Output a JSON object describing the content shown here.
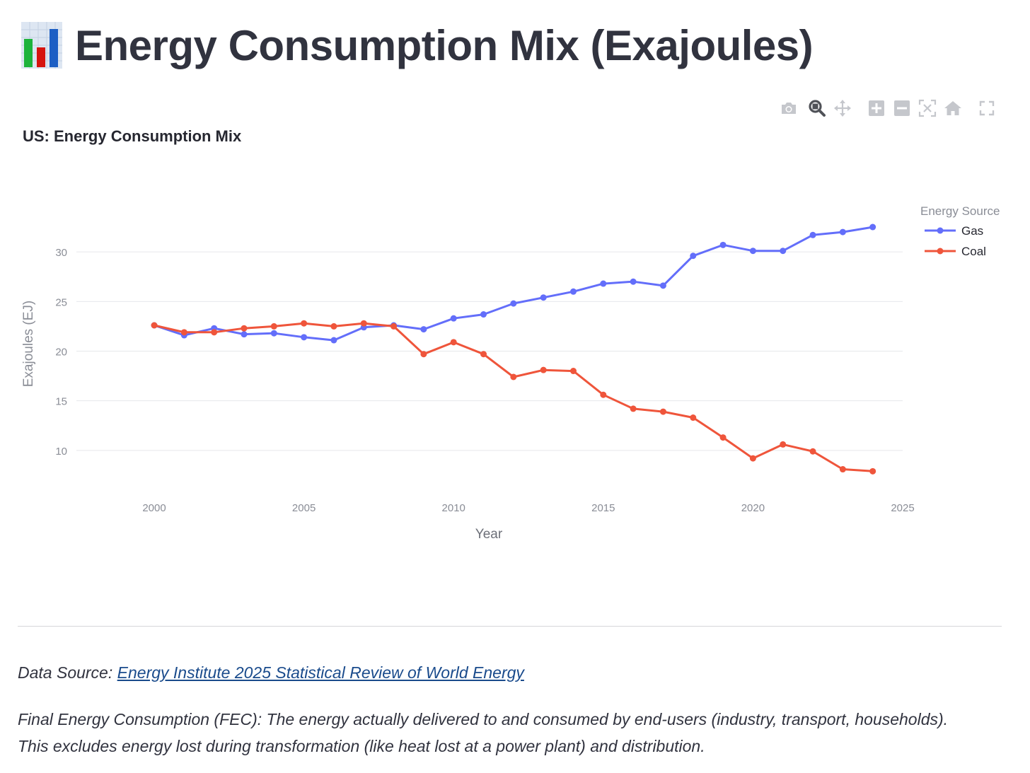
{
  "page": {
    "title": "Energy Consumption Mix (Exajoules)",
    "title_icon": "bar-chart-icon"
  },
  "modebar": {
    "icons": [
      "camera-icon",
      "zoom-icon",
      "pan-icon",
      "zoom-in-icon",
      "zoom-out-icon",
      "autoscale-icon",
      "reset-axes-icon",
      "fullscreen-icon"
    ]
  },
  "chart_data": {
    "type": "line",
    "title": "US: Energy Consumption Mix",
    "xlabel": "Year",
    "ylabel": "Exajoules (EJ)",
    "xlim": [
      1997.4,
      2025
    ],
    "ylim": [
      5.5,
      34
    ],
    "x_ticks": [
      2000,
      2005,
      2010,
      2015,
      2020,
      2025
    ],
    "y_ticks": [
      10,
      15,
      20,
      25,
      30
    ],
    "grid": true,
    "legend_title": "Energy Source",
    "legend_placement": "top-right",
    "x": [
      2000,
      2001,
      2002,
      2003,
      2004,
      2005,
      2006,
      2007,
      2008,
      2009,
      2010,
      2011,
      2012,
      2013,
      2014,
      2015,
      2016,
      2017,
      2018,
      2019,
      2020,
      2021,
      2022,
      2023,
      2024
    ],
    "series": [
      {
        "name": "Gas",
        "color": "#636efa",
        "values": [
          22.6,
          21.6,
          22.3,
          21.7,
          21.8,
          21.4,
          21.1,
          22.4,
          22.6,
          22.2,
          23.3,
          23.7,
          24.8,
          25.4,
          26.0,
          26.8,
          27.0,
          26.6,
          29.6,
          30.7,
          30.1,
          30.1,
          31.7,
          32.0,
          32.5
        ]
      },
      {
        "name": "Coal",
        "color": "#EF553B",
        "values": [
          22.6,
          21.9,
          21.9,
          22.3,
          22.5,
          22.8,
          22.5,
          22.8,
          22.5,
          19.7,
          20.9,
          19.7,
          17.4,
          18.1,
          18.0,
          15.6,
          14.2,
          13.9,
          13.3,
          11.3,
          9.2,
          10.6,
          9.9,
          8.1,
          7.9
        ]
      }
    ]
  },
  "footer": {
    "source_prefix": "Data Source: ",
    "source_link": "Energy Institute 2025 Statistical Review of World Energy",
    "description": "Final Energy Consumption (FEC): The energy actually delivered to and consumed by end-users (industry, transport, households). This excludes energy lost during transformation (like heat lost at a power plant) and distribution."
  }
}
